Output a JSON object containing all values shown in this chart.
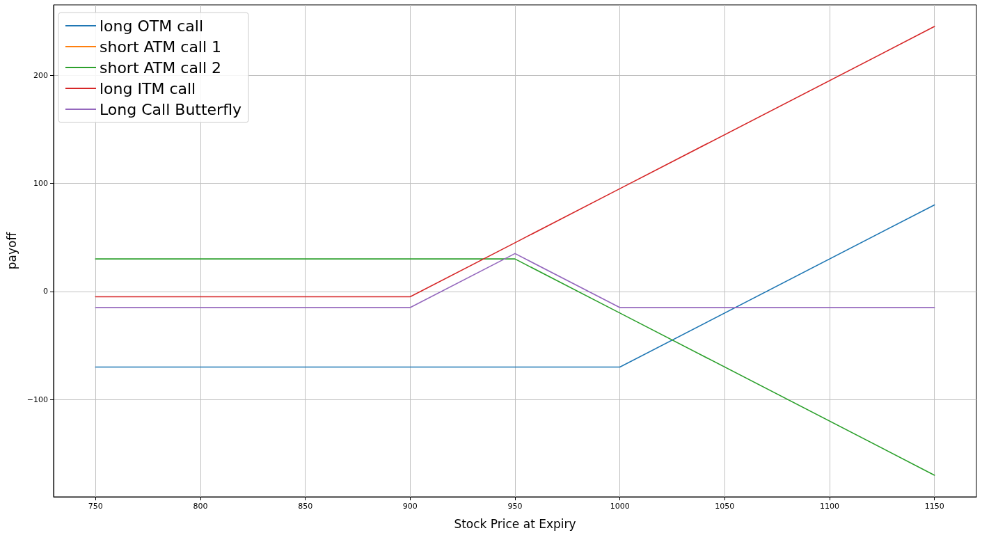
{
  "chart_data": {
    "type": "line",
    "xlabel": "Stock Price at Expiry",
    "ylabel": "payoff",
    "x": [
      750,
      900,
      950,
      1000,
      1150
    ],
    "series": [
      {
        "name": "long OTM call",
        "color": "#1f77b4",
        "values": [
          -70,
          -70,
          -70,
          -70,
          80
        ]
      },
      {
        "name": "short ATM call 1",
        "color": "#ff7f0e",
        "values": [
          null,
          null,
          null,
          null,
          null
        ]
      },
      {
        "name": "short ATM call 2",
        "color": "#2ca02c",
        "values": [
          30,
          30,
          30,
          -20,
          -170
        ]
      },
      {
        "name": "long ITM call",
        "color": "#d62728",
        "values": [
          -5,
          -5,
          45,
          95,
          245
        ]
      },
      {
        "name": "Long Call Butterfly",
        "color": "#9467bd",
        "values": [
          -15,
          -15,
          35,
          -15,
          -15
        ]
      }
    ],
    "xlim": [
      730,
      1170
    ],
    "xticks": [
      750,
      800,
      850,
      900,
      950,
      1000,
      1050,
      1100,
      1150
    ],
    "ylim": [
      -190,
      265
    ],
    "yticks": [
      -100,
      0,
      100,
      200
    ],
    "grid": true,
    "legend": "top left",
    "marker": "none",
    "line_style": "solid"
  }
}
